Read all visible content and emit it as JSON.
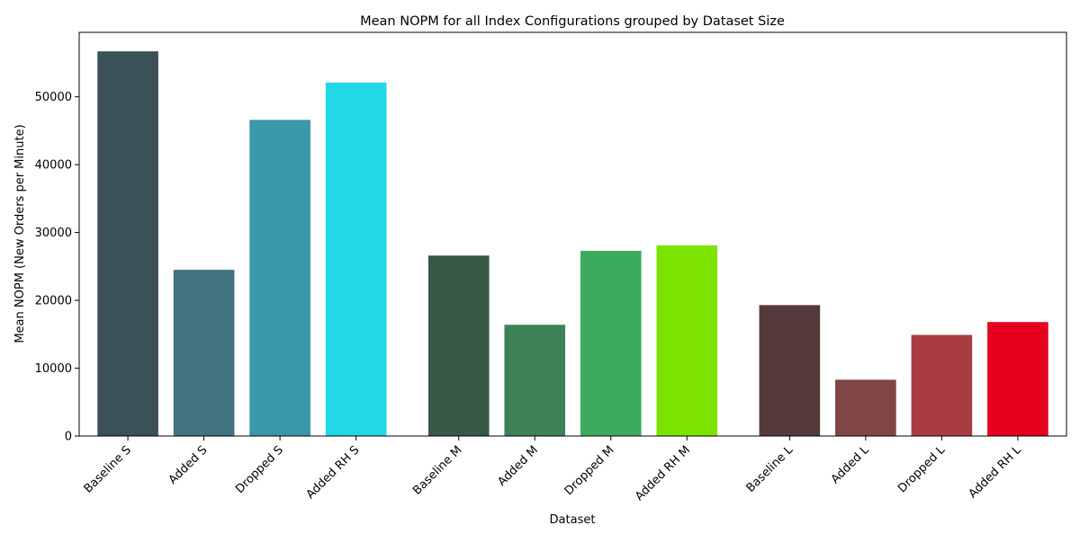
{
  "chart_data": {
    "type": "bar",
    "title": "Mean NOPM for all Index Configurations grouped by Dataset Size",
    "xlabel": "Dataset",
    "ylabel": "Mean NOPM (New Orders per Minute)",
    "ylim": [
      0,
      59500
    ],
    "yticks": [
      0,
      10000,
      20000,
      30000,
      40000,
      50000
    ],
    "grid": false,
    "legend": "none",
    "categories": [
      "Baseline S",
      "Added S",
      "Dropped S",
      "Added RH S",
      "Baseline M",
      "Added M",
      "Dropped M",
      "Added RH M",
      "Baseline L",
      "Added L",
      "Dropped L",
      "Added RH L"
    ],
    "groups": [
      0,
      0,
      0,
      0,
      1,
      1,
      1,
      1,
      2,
      2,
      2,
      2
    ],
    "values": [
      56700,
      24500,
      46600,
      52100,
      26600,
      16400,
      27300,
      28100,
      19300,
      8300,
      14900,
      16800
    ],
    "colors": [
      "#3a5257",
      "#417480",
      "#3998aa",
      "#20d8e6",
      "#385846",
      "#3e8259",
      "#3cab5f",
      "#7de400",
      "#553a3b",
      "#804547",
      "#a83c41",
      "#e6001e"
    ]
  }
}
